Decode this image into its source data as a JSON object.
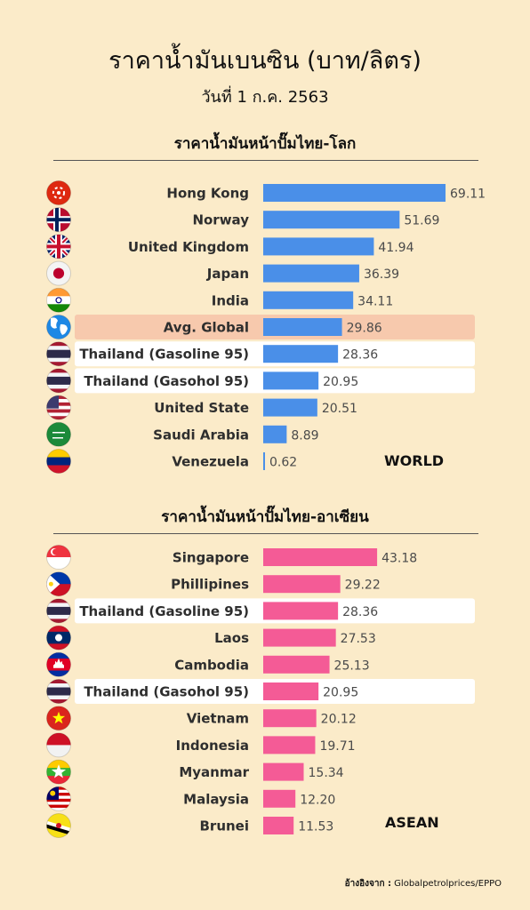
{
  "title": "ราคาน้ำมันเบนซิน (บาท/ลิตร)",
  "subtitle": "วันที่ 1 ก.ค. 2563",
  "source_label": "อ้างอิงจาก :",
  "source_text": "Globalpetrolprices/EPPO",
  "colors": {
    "background": "#fbebc9",
    "world_bar": "#4a8fe8",
    "asean_bar": "#f45b96",
    "highlight_global": "#f7c9ad",
    "highlight_thailand": "#ffffff"
  },
  "chart_data": [
    {
      "type": "bar",
      "orientation": "horizontal",
      "title": "ราคาน้ำมันหน้าปั๊มไทย-โลก",
      "region_label": "WORLD",
      "bar_color": "#4a8fe8",
      "xlim": [
        0,
        69.11
      ],
      "categories": [
        "Hong Kong",
        "Norway",
        "United Kingdom",
        "Japan",
        "India",
        "Avg. Global",
        "Thailand (Gasoline 95)",
        "Thailand (Gasohol 95)",
        "United State",
        "Saudi Arabia",
        "Venezuela"
      ],
      "values": [
        69.11,
        51.69,
        41.94,
        36.39,
        34.11,
        29.86,
        28.36,
        20.95,
        20.51,
        8.89,
        0.62
      ],
      "labels": [
        "69.11",
        "51.69",
        "41.94",
        "36.39",
        "34.11",
        "29.86",
        "28.36",
        "20.95",
        "20.51",
        "8.89",
        "0.62"
      ],
      "flags": [
        "hong-kong",
        "norway",
        "united-kingdom",
        "japan",
        "india",
        "globe",
        "thailand",
        "thailand",
        "united-states",
        "saudi-arabia",
        "venezuela"
      ],
      "highlight": [
        "none",
        "none",
        "none",
        "none",
        "none",
        "global",
        "thailand",
        "thailand",
        "none",
        "none",
        "none"
      ]
    },
    {
      "type": "bar",
      "orientation": "horizontal",
      "title": "ราคาน้ำมันหน้าปั๊มไทย-อาเซียน",
      "region_label": "ASEAN",
      "bar_color": "#f45b96",
      "xlim": [
        0,
        69.11
      ],
      "categories": [
        "Singapore",
        "Phillipines",
        "Thailand (Gasoline 95)",
        "Laos",
        "Cambodia",
        "Thailand (Gasohol 95)",
        "Vietnam",
        "Indonesia",
        "Myanmar",
        "Malaysia",
        "Brunei"
      ],
      "values": [
        43.18,
        29.22,
        28.36,
        27.53,
        25.13,
        20.95,
        20.12,
        19.71,
        15.34,
        12.2,
        11.53
      ],
      "labels": [
        "43.18",
        "29.22",
        "28.36",
        "27.53",
        "25.13",
        "20.95",
        "20.12",
        "19.71",
        "15.34",
        "12.20",
        "11.53"
      ],
      "flags": [
        "singapore",
        "philippines",
        "thailand",
        "laos",
        "cambodia",
        "thailand",
        "vietnam",
        "indonesia",
        "myanmar",
        "malaysia",
        "brunei"
      ],
      "highlight": [
        "none",
        "none",
        "thailand",
        "none",
        "none",
        "thailand",
        "none",
        "none",
        "none",
        "none",
        "none"
      ]
    }
  ]
}
